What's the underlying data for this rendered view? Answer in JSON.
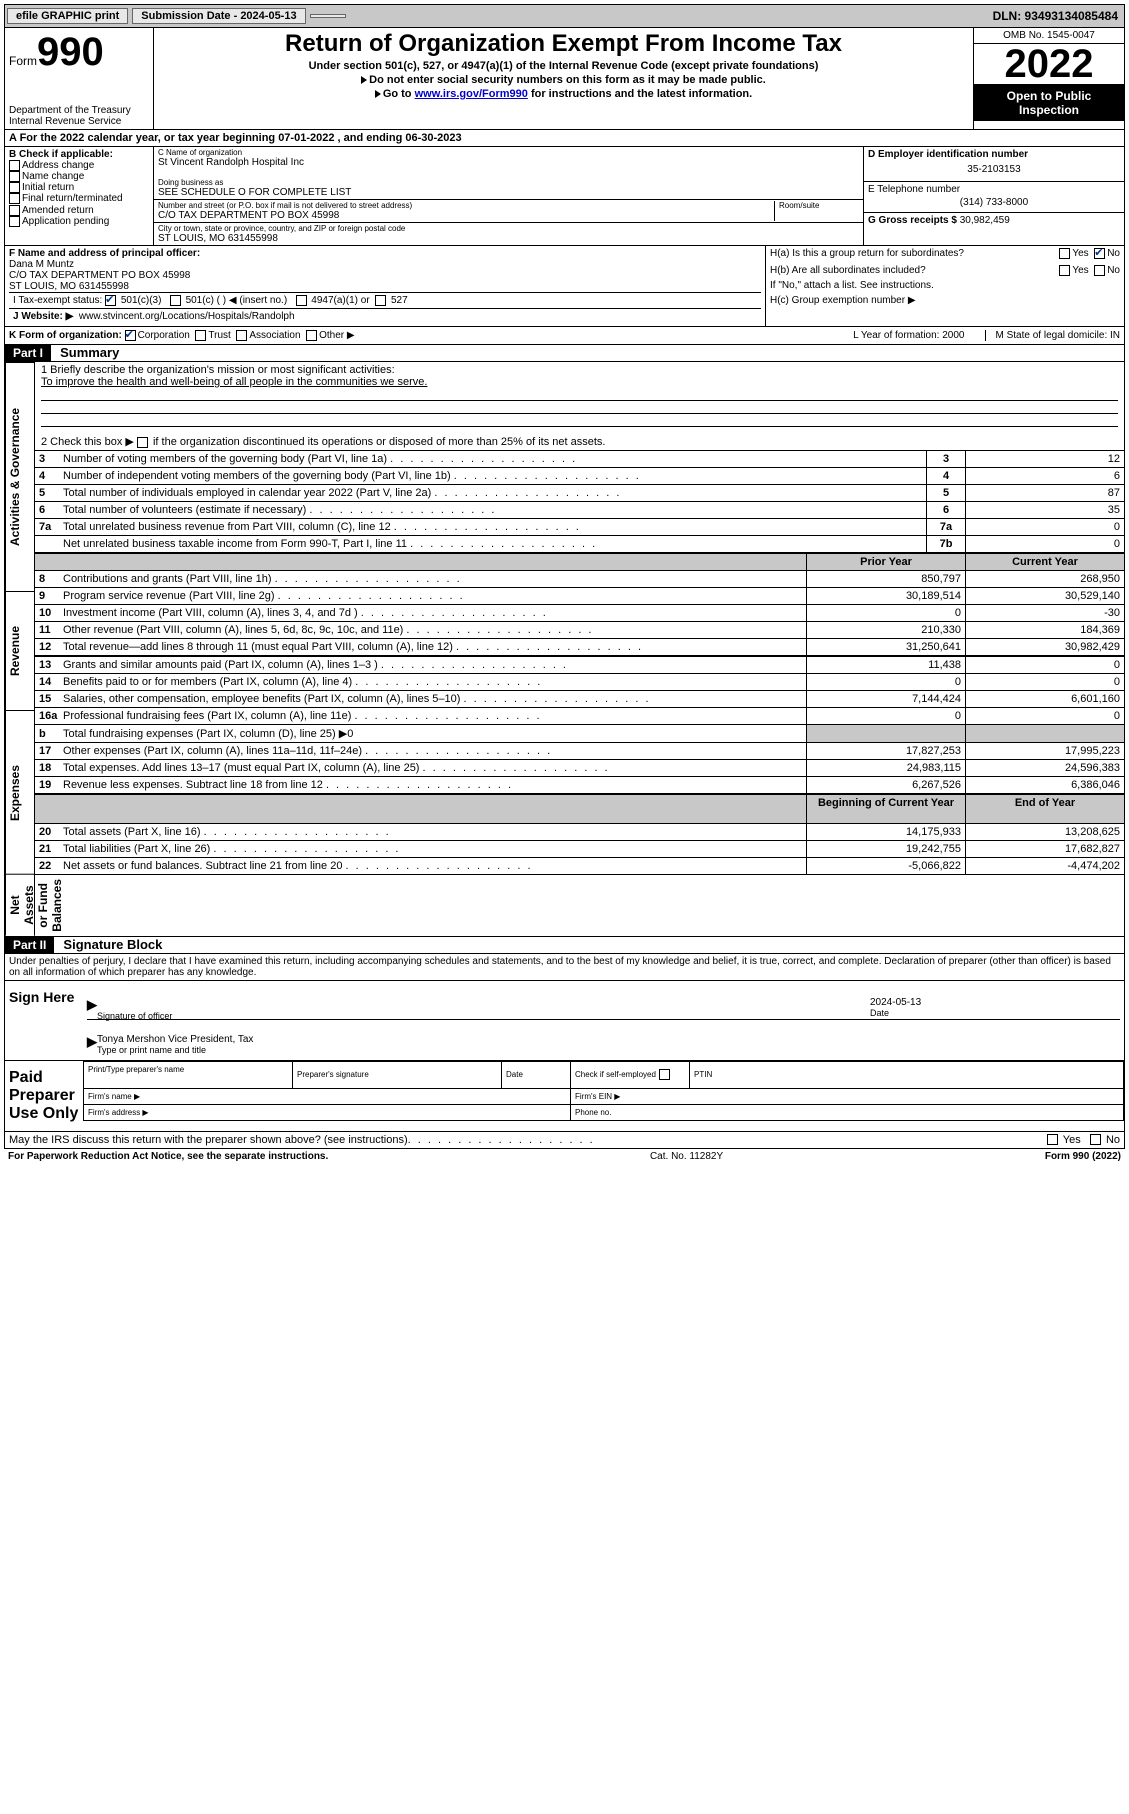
{
  "topbar": {
    "efile": "efile GRAPHIC print",
    "submission": "Submission Date - 2024-05-13",
    "dln": "DLN: 93493134085484"
  },
  "header": {
    "form_prefix": "Form",
    "form_number": "990",
    "dept": "Department of the Treasury",
    "irs": "Internal Revenue Service",
    "title": "Return of Organization Exempt From Income Tax",
    "sub1": "Under section 501(c), 527, or 4947(a)(1) of the Internal Revenue Code (except private foundations)",
    "sub2": "Do not enter social security numbers on this form as it may be made public.",
    "sub3_pre": "Go to ",
    "sub3_link": "www.irs.gov/Form990",
    "sub3_post": " for instructions and the latest information.",
    "omb": "OMB No. 1545-0047",
    "taxyear": "2022",
    "open": "Open to Public Inspection"
  },
  "rowA": "A  For the 2022 calendar year, or tax year beginning 07-01-2022    , and ending 06-30-2023",
  "blockB": {
    "hdr": "B Check if applicable:",
    "items": [
      "Address change",
      "Name change",
      "Initial return",
      "Final return/terminated",
      "Amended return",
      "Application pending"
    ]
  },
  "blockC": {
    "name_lbl": "C Name of organization",
    "name": "St Vincent Randolph Hospital Inc",
    "dba_lbl": "Doing business as",
    "dba": "SEE SCHEDULE O FOR COMPLETE LIST",
    "street_lbl": "Number and street (or P.O. box if mail is not delivered to street address)",
    "room_lbl": "Room/suite",
    "street": "C/O TAX DEPARTMENT PO BOX 45998",
    "city_lbl": "City or town, state or province, country, and ZIP or foreign postal code",
    "city": "ST LOUIS, MO  631455998",
    "F_lbl": "F Name and address of principal officer:",
    "F_val": "Dana M Muntz\nC/O TAX DEPARTMENT PO BOX 45998\nST LOUIS, MO  631455998"
  },
  "blockDE": {
    "D_lbl": "D Employer identification number",
    "D_val": "35-2103153",
    "E_lbl": "E Telephone number",
    "E_val": "(314) 733-8000",
    "G_lbl": "G Gross receipts $",
    "G_val": "30,982,459"
  },
  "blockH": {
    "Ha": "H(a)  Is this a group return for subordinates?",
    "Ha_yes": "Yes",
    "Ha_no": "No",
    "Hb": "H(b)  Are all subordinates included?",
    "Hb_note": "If \"No,\" attach a list. See instructions.",
    "Hc": "H(c)  Group exemption number ▶"
  },
  "rowI": {
    "lbl": "I   Tax-exempt status:",
    "o1": "501(c)(3)",
    "o2": "501(c) (  ) ◀ (insert no.)",
    "o3": "4947(a)(1) or",
    "o4": "527"
  },
  "rowJ": {
    "lbl": "J   Website: ▶",
    "val": "www.stvincent.org/Locations/Hospitals/Randolph"
  },
  "rowK": {
    "lbl": "K Form of organization:",
    "o1": "Corporation",
    "o2": "Trust",
    "o3": "Association",
    "o4": "Other ▶",
    "L": "L Year of formation: 2000",
    "M": "M State of legal domicile: IN"
  },
  "partI": {
    "hdr": "Part I",
    "title": "Summary"
  },
  "summary": {
    "q1_lbl": "1   Briefly describe the organization's mission or most significant activities:",
    "q1_val": "To improve the health and well-being of all people in the communities we serve.",
    "q2_lbl": "2   Check this box ▶",
    "q2_txt": "if the organization discontinued its operations or disposed of more than 25% of its net assets.",
    "sideA": "Activities & Governance",
    "sideR": "Revenue",
    "sideE": "Expenses",
    "sideN": "Net Assets or Fund Balances",
    "prior_hdr": "Prior Year",
    "curr_hdr": "Current Year",
    "begin_hdr": "Beginning of Current Year",
    "end_hdr": "End of Year",
    "rows_single": [
      {
        "n": "3",
        "lbl": "Number of voting members of the governing body (Part VI, line 1a)",
        "k": "3",
        "v": "12"
      },
      {
        "n": "4",
        "lbl": "Number of independent voting members of the governing body (Part VI, line 1b)",
        "k": "4",
        "v": "6"
      },
      {
        "n": "5",
        "lbl": "Total number of individuals employed in calendar year 2022 (Part V, line 2a)",
        "k": "5",
        "v": "87"
      },
      {
        "n": "6",
        "lbl": "Total number of volunteers (estimate if necessary)",
        "k": "6",
        "v": "35"
      },
      {
        "n": "7a",
        "lbl": "Total unrelated business revenue from Part VIII, column (C), line 12",
        "k": "7a",
        "v": "0"
      },
      {
        "n": "",
        "lbl": "Net unrelated business taxable income from Form 990-T, Part I, line 11",
        "k": "7b",
        "v": "0"
      }
    ],
    "rows_revenue": [
      {
        "n": "8",
        "lbl": "Contributions and grants (Part VIII, line 1h)",
        "p": "850,797",
        "c": "268,950"
      },
      {
        "n": "9",
        "lbl": "Program service revenue (Part VIII, line 2g)",
        "p": "30,189,514",
        "c": "30,529,140"
      },
      {
        "n": "10",
        "lbl": "Investment income (Part VIII, column (A), lines 3, 4, and 7d )",
        "p": "0",
        "c": "-30"
      },
      {
        "n": "11",
        "lbl": "Other revenue (Part VIII, column (A), lines 5, 6d, 8c, 9c, 10c, and 11e)",
        "p": "210,330",
        "c": "184,369"
      },
      {
        "n": "12",
        "lbl": "Total revenue—add lines 8 through 11 (must equal Part VIII, column (A), line 12)",
        "p": "31,250,641",
        "c": "30,982,429"
      }
    ],
    "rows_expenses": [
      {
        "n": "13",
        "lbl": "Grants and similar amounts paid (Part IX, column (A), lines 1–3 )",
        "p": "11,438",
        "c": "0"
      },
      {
        "n": "14",
        "lbl": "Benefits paid to or for members (Part IX, column (A), line 4)",
        "p": "0",
        "c": "0"
      },
      {
        "n": "15",
        "lbl": "Salaries, other compensation, employee benefits (Part IX, column (A), lines 5–10)",
        "p": "7,144,424",
        "c": "6,601,160"
      },
      {
        "n": "16a",
        "lbl": "Professional fundraising fees (Part IX, column (A), line 11e)",
        "p": "0",
        "c": "0"
      },
      {
        "n": "b",
        "lbl": "Total fundraising expenses (Part IX, column (D), line 25) ▶0",
        "p": "",
        "c": "",
        "shaded": true
      },
      {
        "n": "17",
        "lbl": "Other expenses (Part IX, column (A), lines 11a–11d, 11f–24e)",
        "p": "17,827,253",
        "c": "17,995,223"
      },
      {
        "n": "18",
        "lbl": "Total expenses. Add lines 13–17 (must equal Part IX, column (A), line 25)",
        "p": "24,983,115",
        "c": "24,596,383"
      },
      {
        "n": "19",
        "lbl": "Revenue less expenses. Subtract line 18 from line 12",
        "p": "6,267,526",
        "c": "6,386,046"
      }
    ],
    "rows_net": [
      {
        "n": "20",
        "lbl": "Total assets (Part X, line 16)",
        "p": "14,175,933",
        "c": "13,208,625"
      },
      {
        "n": "21",
        "lbl": "Total liabilities (Part X, line 26)",
        "p": "19,242,755",
        "c": "17,682,827"
      },
      {
        "n": "22",
        "lbl": "Net assets or fund balances. Subtract line 21 from line 20",
        "p": "-5,066,822",
        "c": "-4,474,202"
      }
    ]
  },
  "partII": {
    "hdr": "Part II",
    "title": "Signature Block",
    "declare": "Under penalties of perjury, I declare that I have examined this return, including accompanying schedules and statements, and to the best of my knowledge and belief, it is true, correct, and complete. Declaration of preparer (other than officer) is based on all information of which preparer has any knowledge.",
    "sign_here": "Sign Here",
    "sig_officer_lbl": "Signature of officer",
    "date_lbl": "Date",
    "date_val": "2024-05-13",
    "officer_name": "Tonya Mershon  Vice President, Tax",
    "officer_name_lbl": "Type or print name and title",
    "paid": "Paid Preparer Use Only",
    "prep_name_lbl": "Print/Type preparer's name",
    "prep_sig_lbl": "Preparer's signature",
    "prep_date_lbl": "Date",
    "prep_chk_lbl": "Check         if self-employed",
    "ptin_lbl": "PTIN",
    "firm_name_lbl": "Firm's name    ▶",
    "firm_ein_lbl": "Firm's EIN ▶",
    "firm_addr_lbl": "Firm's address ▶",
    "phone_lbl": "Phone no.",
    "may_irs": "May the IRS discuss this return with the preparer shown above? (see instructions)",
    "yes": "Yes",
    "no": "No"
  },
  "footer": {
    "left": "For Paperwork Reduction Act Notice, see the separate instructions.",
    "mid": "Cat. No. 11282Y",
    "right": "Form 990 (2022)"
  },
  "colors": {
    "topbar_bg": "#c8c8c8",
    "black": "#000000",
    "link": "#0000cc",
    "check": "#003399"
  }
}
